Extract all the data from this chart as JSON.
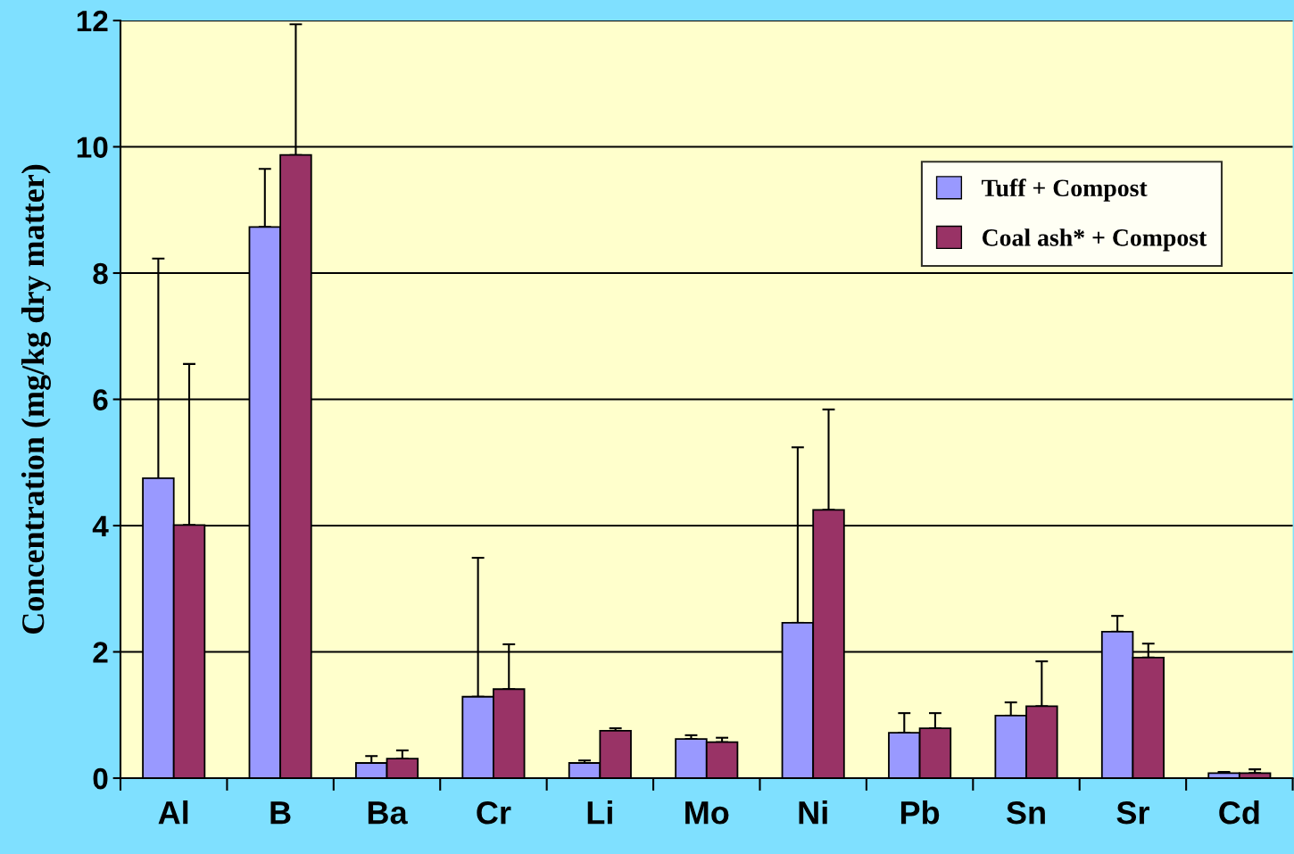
{
  "chart_data": {
    "type": "bar",
    "ylabel": "Concentration (mg/kg dry matter)",
    "categories": [
      "Al",
      "B",
      "Ba",
      "Cr",
      "Li",
      "Mo",
      "Ni",
      "Pb",
      "Sn",
      "Sr",
      "Cd"
    ],
    "series": [
      {
        "name": "Tuff + Compost",
        "color": "#9999ff",
        "values": [
          4.75,
          8.73,
          0.24,
          1.29,
          0.24,
          0.62,
          2.46,
          0.72,
          0.99,
          2.32,
          0.08
        ],
        "errors": [
          [
            4.75,
            8.23
          ],
          [
            8.73,
            9.65
          ],
          [
            0.24,
            0.35
          ],
          [
            1.29,
            3.49
          ],
          [
            0.24,
            0.28
          ],
          [
            0.62,
            0.68
          ],
          [
            2.46,
            5.24
          ],
          [
            0.72,
            1.03
          ],
          [
            0.99,
            1.2
          ],
          [
            2.32,
            2.57
          ],
          [
            0.08,
            0.1
          ]
        ]
      },
      {
        "name": "Coal ash* + Compost",
        "color": "#993366",
        "values": [
          4.01,
          9.87,
          0.31,
          1.41,
          0.75,
          0.57,
          4.25,
          0.79,
          1.14,
          1.91,
          0.08
        ],
        "errors": [
          [
            4.01,
            6.56
          ],
          [
            9.87,
            11.94
          ],
          [
            0.31,
            0.44
          ],
          [
            1.41,
            2.12
          ],
          [
            0.75,
            0.79
          ],
          [
            0.57,
            0.64
          ],
          [
            4.25,
            5.84
          ],
          [
            0.79,
            1.03
          ],
          [
            1.14,
            1.85
          ],
          [
            1.91,
            2.13
          ],
          [
            0.08,
            0.14
          ]
        ]
      }
    ],
    "ylim": [
      0,
      12
    ],
    "yticks": [
      0,
      2,
      4,
      6,
      8,
      10,
      12
    ],
    "grid": "y",
    "legend": "top right"
  }
}
